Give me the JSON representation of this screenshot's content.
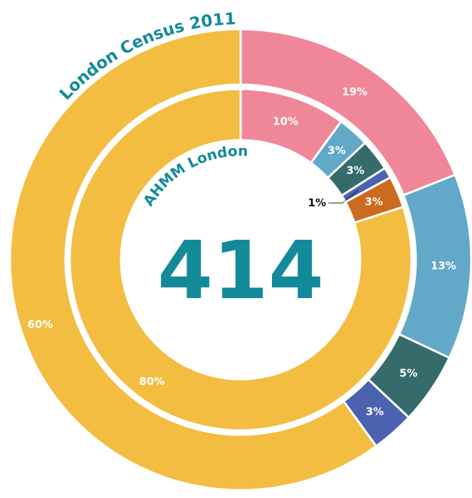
{
  "chart_data": {
    "type": "donut",
    "center_value": 414,
    "center_color": "#138a9a",
    "series": [
      {
        "name": "London Census 2011",
        "values": [
          19,
          13,
          5,
          3,
          60
        ],
        "value_labels": [
          "19%",
          "13%",
          "5%",
          "3%",
          "60%"
        ],
        "colors": [
          "#f08799",
          "#62a8c8",
          "#356b6a",
          "#4a62b0",
          "#f2bd41"
        ]
      },
      {
        "name": "AHMM London",
        "values": [
          10,
          3,
          3,
          1,
          3,
          80
        ],
        "value_labels": [
          "10%",
          "3%",
          "3%",
          "1%",
          "3%",
          "80%"
        ],
        "colors": [
          "#f08799",
          "#62a8c8",
          "#356b6a",
          "#4a62b0",
          "#cc6a1f",
          "#f2bd41"
        ]
      }
    ]
  }
}
